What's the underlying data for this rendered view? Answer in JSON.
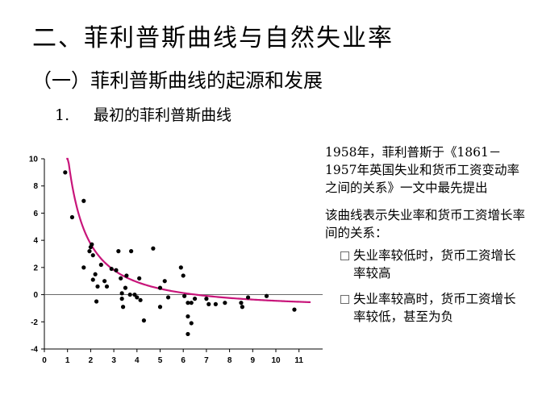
{
  "slide": {
    "title": "二、菲利普斯曲线与自然失业率",
    "subtitle": "（一）菲利普斯曲线的起源和发展",
    "point_number": "1.",
    "point_title": "最初的菲利普斯曲线"
  },
  "description": {
    "para1": "1958年，菲利普斯于《1861－1957年英国失业和货币工资变动率之间的关系》一文中最先提出",
    "para2": "该曲线表示失业率和货币工资增长率间的关系：",
    "bullets": [
      "失业率较低时，货币工资增长率较高",
      "失业率较高时，货币工资增长率较低，甚至为负"
    ]
  },
  "chart_data": {
    "type": "scatter",
    "xlim": [
      0,
      12
    ],
    "ylim": [
      -4,
      10
    ],
    "x_ticks": [
      0,
      1,
      2,
      3,
      4,
      5,
      6,
      7,
      8,
      9,
      10,
      11
    ],
    "y_ticks": [
      10,
      8,
      6,
      4,
      2,
      0,
      -2,
      -4
    ],
    "grid": false,
    "reference_line_y": 0,
    "curve_color": "#c8157a",
    "point_color": "#000000",
    "points": [
      {
        "x": 0.9,
        "y": 9.0
      },
      {
        "x": 1.2,
        "y": 5.7
      },
      {
        "x": 1.7,
        "y": 6.9
      },
      {
        "x": 1.7,
        "y": 2.0
      },
      {
        "x": 1.95,
        "y": 3.2
      },
      {
        "x": 2.0,
        "y": 3.5
      },
      {
        "x": 2.05,
        "y": 3.7
      },
      {
        "x": 2.1,
        "y": 2.9
      },
      {
        "x": 2.2,
        "y": 1.5
      },
      {
        "x": 2.1,
        "y": 1.1
      },
      {
        "x": 2.3,
        "y": 0.6
      },
      {
        "x": 2.45,
        "y": 2.2
      },
      {
        "x": 2.6,
        "y": 1.0
      },
      {
        "x": 2.7,
        "y": 0.6
      },
      {
        "x": 2.25,
        "y": -0.5
      },
      {
        "x": 2.9,
        "y": 1.9
      },
      {
        "x": 3.1,
        "y": 1.8
      },
      {
        "x": 3.2,
        "y": 3.2
      },
      {
        "x": 3.3,
        "y": 1.2
      },
      {
        "x": 3.35,
        "y": 0.1
      },
      {
        "x": 3.5,
        "y": 0.5
      },
      {
        "x": 3.55,
        "y": 1.4
      },
      {
        "x": 3.7,
        "y": 0.0
      },
      {
        "x": 3.75,
        "y": 3.2
      },
      {
        "x": 3.35,
        "y": -0.3
      },
      {
        "x": 3.4,
        "y": -0.9
      },
      {
        "x": 3.9,
        "y": 0.0
      },
      {
        "x": 4.0,
        "y": -0.2
      },
      {
        "x": 4.1,
        "y": 1.2
      },
      {
        "x": 4.15,
        "y": -0.4
      },
      {
        "x": 4.3,
        "y": -1.9
      },
      {
        "x": 4.7,
        "y": 3.4
      },
      {
        "x": 5.0,
        "y": 0.5
      },
      {
        "x": 5.2,
        "y": 1.0
      },
      {
        "x": 5.35,
        "y": -0.2
      },
      {
        "x": 5.0,
        "y": -0.9
      },
      {
        "x": 5.9,
        "y": 2.0
      },
      {
        "x": 6.0,
        "y": 1.4
      },
      {
        "x": 6.05,
        "y": -0.1
      },
      {
        "x": 6.2,
        "y": -0.6
      },
      {
        "x": 6.35,
        "y": -0.6
      },
      {
        "x": 6.5,
        "y": -0.3
      },
      {
        "x": 6.2,
        "y": -1.6
      },
      {
        "x": 6.35,
        "y": -2.1
      },
      {
        "x": 6.2,
        "y": -2.9
      },
      {
        "x": 7.0,
        "y": -0.3
      },
      {
        "x": 7.1,
        "y": -0.7
      },
      {
        "x": 7.4,
        "y": -0.7
      },
      {
        "x": 7.8,
        "y": -0.6
      },
      {
        "x": 8.5,
        "y": -0.6
      },
      {
        "x": 8.55,
        "y": -0.9
      },
      {
        "x": 8.8,
        "y": -0.2
      },
      {
        "x": 9.6,
        "y": -0.1
      },
      {
        "x": 10.8,
        "y": -1.1
      }
    ],
    "curve": {
      "a": 11.5,
      "b": 1.0,
      "c": -1.1,
      "x_start": 0.95,
      "x_end": 11.5
    }
  }
}
